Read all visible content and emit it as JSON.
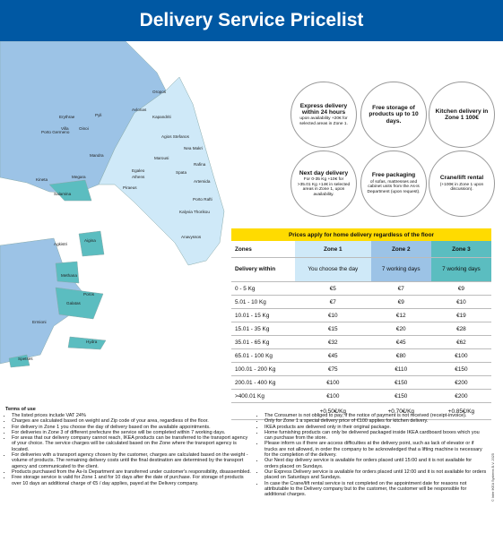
{
  "header": {
    "title": "Delivery Service Pricelist"
  },
  "map": {
    "labels": [
      "Oropos",
      "Avlonas",
      "Kapandriti",
      "Erythrae",
      "Pyli",
      "Oinoi",
      "Villa",
      "Porto Germeno",
      "Agios Stefanos",
      "Nea Makri",
      "Mandra",
      "Marousi",
      "Rafina",
      "Megara",
      "Kineta",
      "Egaleo",
      "Athens",
      "Spata",
      "Artemida",
      "Piraeus",
      "Salamina",
      "Porto Rafti",
      "Kalyvia Thorikou",
      "Anavyssos",
      "Aigina",
      "Agkistri",
      "Methana",
      "Poros",
      "Galatas",
      "Ermioni",
      "Hydra",
      "Spetses"
    ]
  },
  "services": [
    {
      "title": "Express delivery within 24 hours",
      "detail": "upon availability +20€ for selected areas in Zone 1."
    },
    {
      "title": "Free storage of products up to 10 days."
    },
    {
      "title": "Kitchen delivery in Zone 1 100€"
    },
    {
      "title": "Next day delivery",
      "detail": "For 0-35 Kg +10€ for >35.01 Kg +14€ in selected areas in Zone 1, upon availability."
    },
    {
      "title": "Free packaging",
      "detail": "of sofas, mattresses and cabinet units from the As-is Department (upon request)."
    },
    {
      "title": "Crane/lift rental",
      "detail": "(+100€ in Zone 1 upon discussion)."
    }
  ],
  "table": {
    "caption": "Prices apply for home delivery regardless of the floor",
    "columns": [
      "Zones",
      "Zone 1",
      "Zone 2",
      "Zone 3"
    ],
    "delivery": [
      "Delivery within",
      "You choose the day",
      "7 working days",
      "7 working days"
    ],
    "rows": [
      [
        "0 - 5 Kg",
        "€5",
        "€7",
        "€9"
      ],
      [
        "5.01 - 10 Kg",
        "€7",
        "€9",
        "€10"
      ],
      [
        "10.01 - 15 Kg",
        "€10",
        "€12",
        "€19"
      ],
      [
        "15.01 - 35 Kg",
        "€15",
        "€20",
        "€28"
      ],
      [
        "35.01 - 65 Kg",
        "€32",
        "€45",
        "€62"
      ],
      [
        "65.01 - 100 Kg",
        "€45",
        "€80",
        "€100"
      ],
      [
        "100.01 - 200 Kg",
        "€75",
        "€110",
        "€150"
      ],
      [
        "200.01 - 400 Kg",
        "€100",
        "€150",
        "€200"
      ],
      [
        ">400.01 Kg",
        "€100",
        "€150",
        "€200"
      ]
    ],
    "per_kg": [
      "+0.50€/Kg",
      "+0.70€/Kg",
      "+0.85€/Kg"
    ]
  },
  "terms": {
    "title": "Terms of use",
    "left": [
      "The listed prices include VAT 24%",
      "Charges are calculated based on weight and Zip code of your area, regardless of the floor.",
      "For delivery in Zone 1 you choose the day of delivery based on the available appointments.",
      "For deliveries in Zone 3 of different prefecture the service will be completed within 7 working days.",
      "For areas that our delivery company cannot reach, IKEA products can be transferred to the transport agency of your choice. The service charges will be calculated based on the Zone where the transport agency is located.",
      "For deliveries with a transport agency chosen by the customer, charges are calculated based on the weight - volume of products. The remaining delivery costs until the final destination are determined by the transport agency and communicated to the client.",
      "Products purchased from the As-Is Department are transferred under customer's responsibility, disassembled.",
      "Free storage service is valid for Zone 1 and for 10 days after the date of purchase. For storage of products over 10 days an additional charge of €5 / day applies, payed at the Delivery company."
    ],
    "right": [
      "The Consumer is not obliged to pay, if the notice of payment is not received (receipt-invoice).",
      "Only for Zone 1 a special delivery price of €100 applies for kitchen delivery.",
      "IKEA products are delivered only in their original package.",
      "Home furnishing products can only be delivered packaged inside IKEA cardboard boxes which you can purchase from the store.",
      "Please inform us if there are access difficulties at the delivery point, such as lack of elevator or if trucks are not allowed, in order the company to be acknowledged that a lifting machine is necessary for the completion of the delivery.",
      "Our Next day delivery service is available for orders placed until 15:00 and it is not available for orders placed on Sundays.",
      "Our Express Delivery service is available for orders placed until 12:00 and it is not available for orders placed on Saturdays and Sundays.",
      "In case the Crane/lift rental service is not completed on the appointment date for reasons not attributable to the Delivery company but to the customer, the customer will be responsible for additional charges."
    ]
  },
  "footer": {
    "copyright": "© Inter IKEA Systems B.V. 2025"
  }
}
